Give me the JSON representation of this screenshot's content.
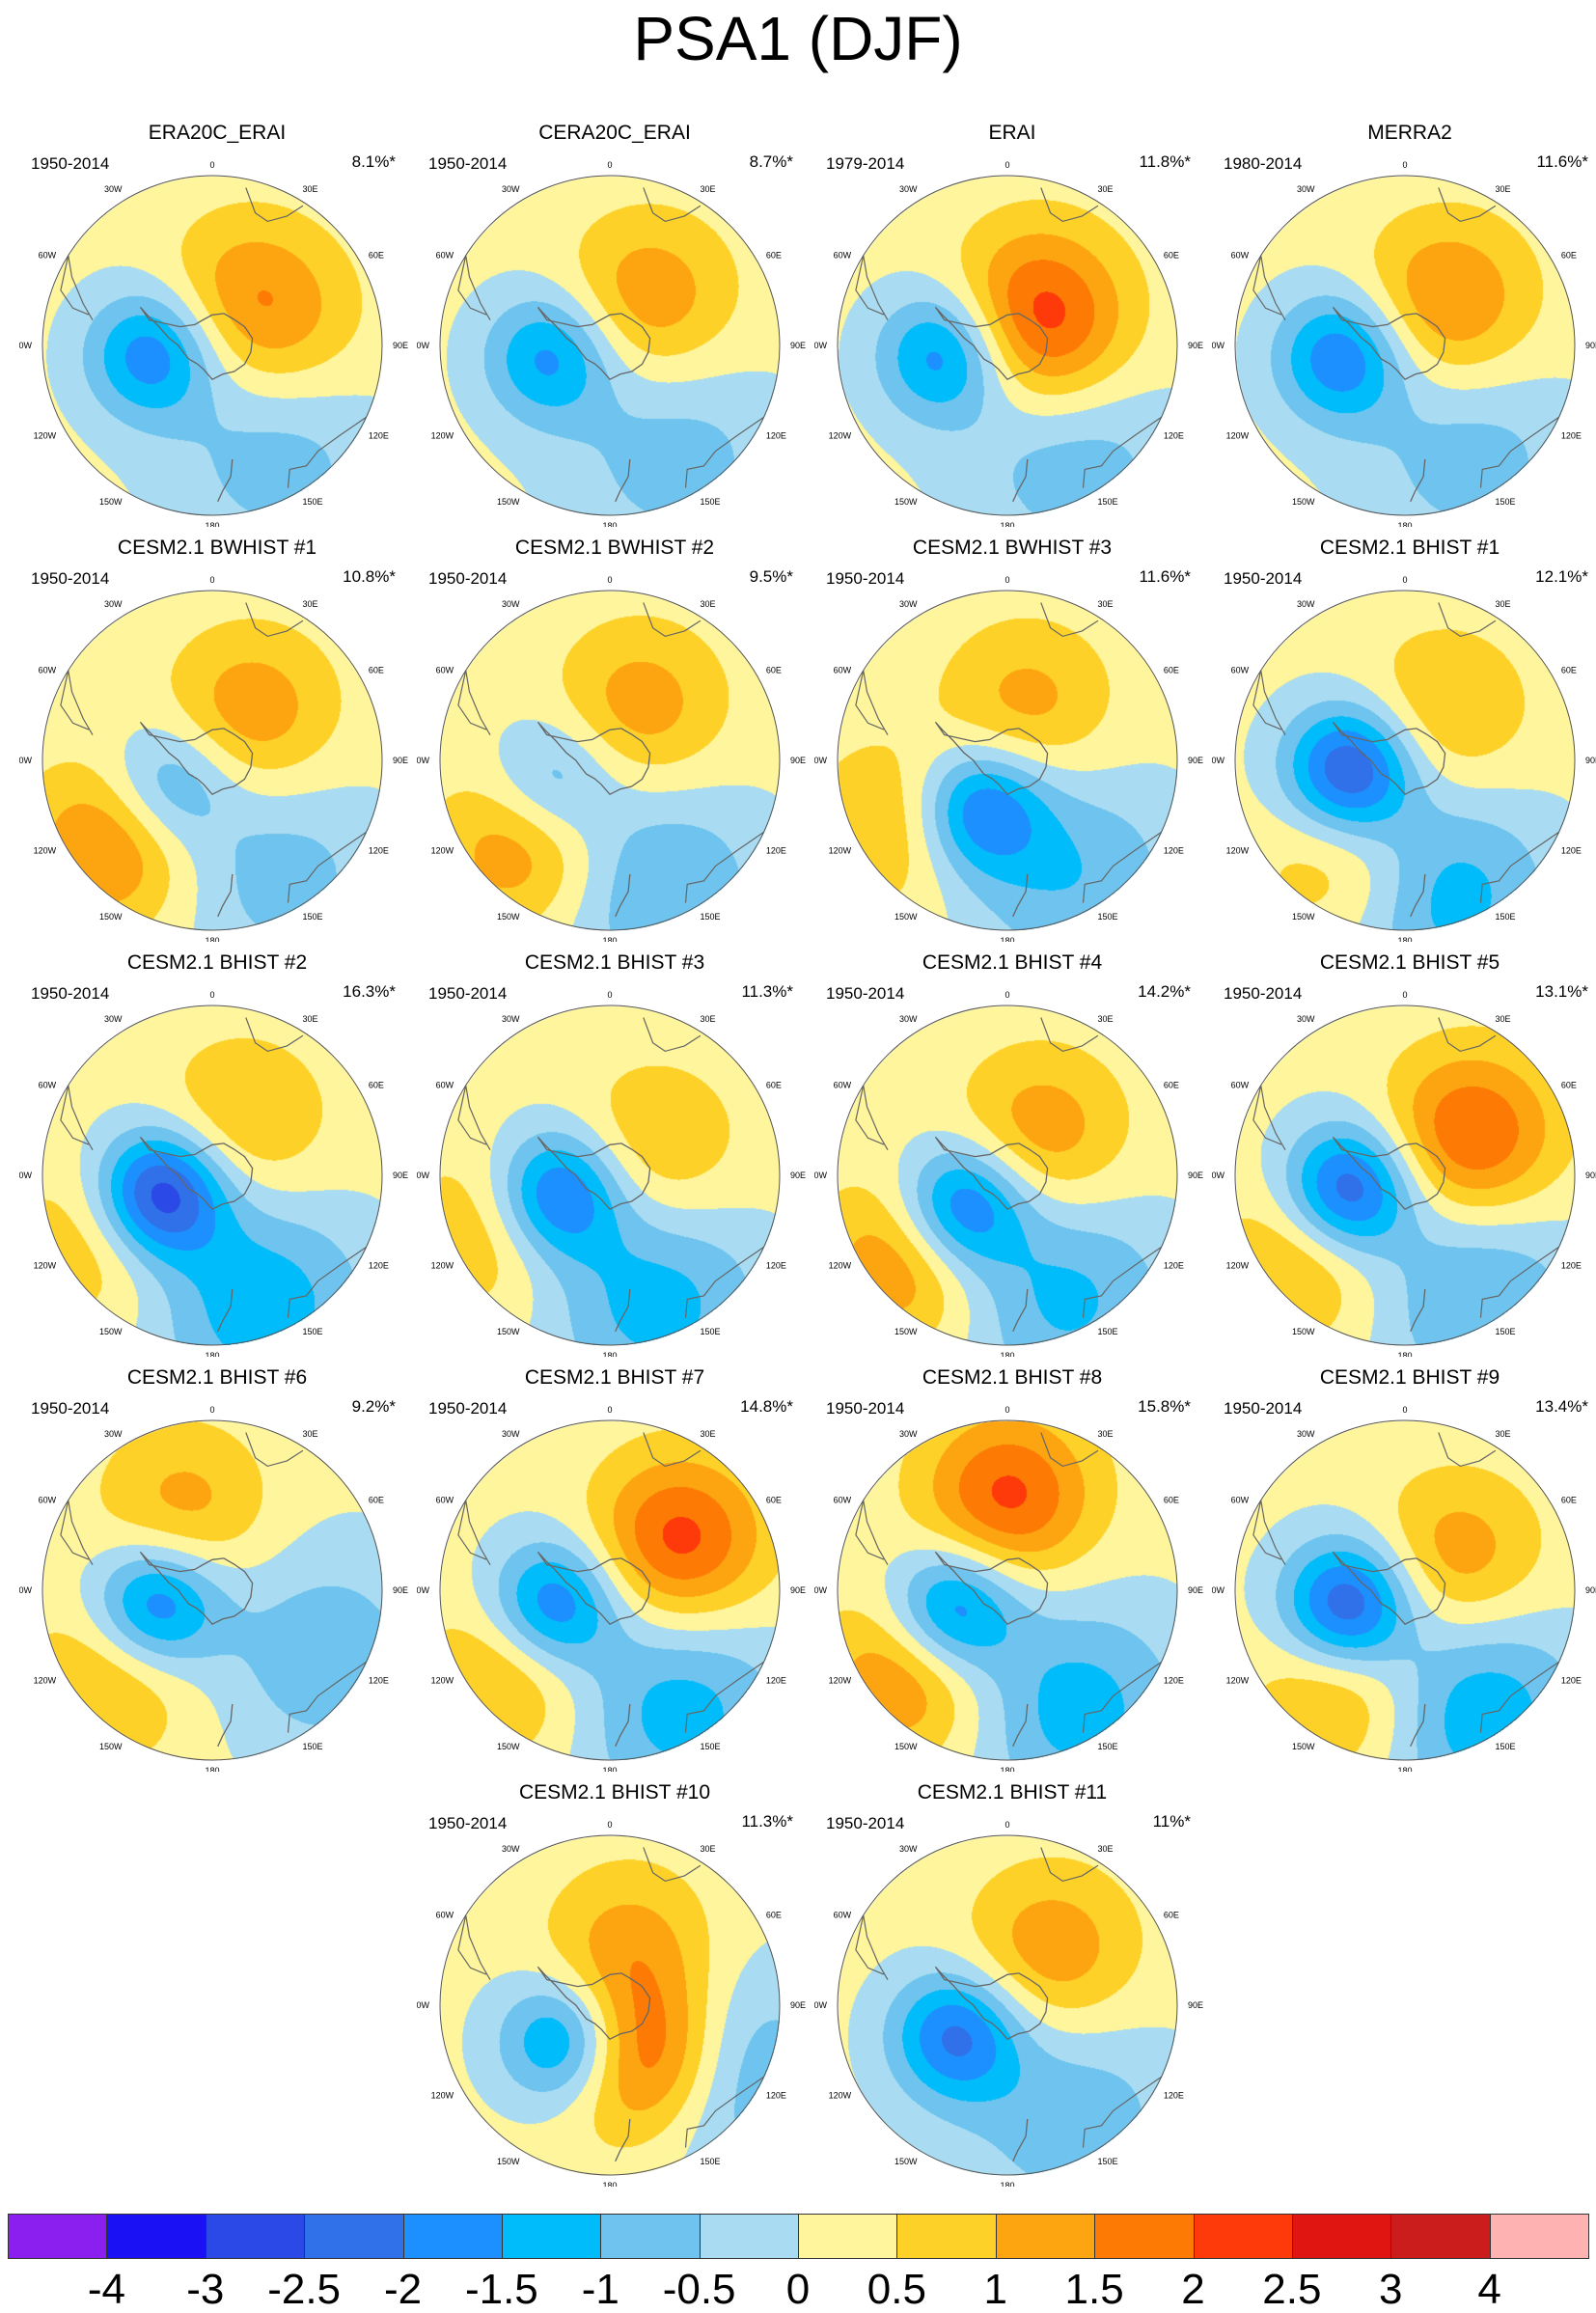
{
  "title": "PSA1 (DJF)",
  "longitude_labels": [
    "0",
    "30E",
    "60E",
    "90E",
    "120E",
    "150E",
    "180",
    "150W",
    "120W",
    "90W",
    "60W",
    "30W"
  ],
  "panels": [
    {
      "title": "ERA20C_ERAI",
      "period": "1950-2014",
      "variance": "8.1%*",
      "low": {
        "lon": -98,
        "r": 0.36,
        "a": -2.0
      },
      "highs": [
        {
          "lon": 35,
          "r": 0.35,
          "a": 1.1
        },
        {
          "lon": 80,
          "r": 0.45,
          "a": 0.6
        }
      ],
      "side": {
        "lon": 150,
        "r": 0.75,
        "a": -0.9
      }
    },
    {
      "title": "CERA20C_ERAI",
      "period": "1950-2014",
      "variance": "8.7%*",
      "low": {
        "lon": -100,
        "r": 0.36,
        "a": -1.8
      },
      "highs": [
        {
          "lon": 40,
          "r": 0.35,
          "a": 1.3
        }
      ],
      "side": {
        "lon": 150,
        "r": 0.75,
        "a": -0.9
      }
    },
    {
      "title": "ERAI",
      "period": "1979-2014",
      "variance": "11.8%*",
      "low": {
        "lon": -98,
        "r": 0.38,
        "a": -2.0
      },
      "highs": [
        {
          "lon": 35,
          "r": 0.3,
          "a": 1.4
        },
        {
          "lon": 90,
          "r": 0.25,
          "a": 1.0
        }
      ],
      "side": {
        "lon": 150,
        "r": 0.75,
        "a": -1.0
      }
    },
    {
      "title": "MERRA2",
      "period": "1980-2014",
      "variance": "11.6%*",
      "low": {
        "lon": -100,
        "r": 0.38,
        "a": -2.1
      },
      "highs": [
        {
          "lon": 45,
          "r": 0.35,
          "a": 1.5
        }
      ],
      "side": {
        "lon": 150,
        "r": 0.75,
        "a": -0.9
      }
    },
    {
      "title": "CESM2.1 BWHIST #1",
      "period": "1950-2014",
      "variance": "10.8%*",
      "low": {
        "lon": -120,
        "r": 0.3,
        "a": -1.5
      },
      "highs": [
        {
          "lon": 40,
          "r": 0.35,
          "a": 1.3
        },
        {
          "lon": -130,
          "r": 0.75,
          "a": 1.6
        }
      ],
      "side": {
        "lon": 150,
        "r": 0.75,
        "a": -0.9
      }
    },
    {
      "title": "CESM2.1 BWHIST #2",
      "period": "1950-2014",
      "variance": "9.5%*",
      "low": {
        "lon": -110,
        "r": 0.36,
        "a": -1.4
      },
      "highs": [
        {
          "lon": 30,
          "r": 0.35,
          "a": 1.2
        },
        {
          "lon": -135,
          "r": 0.7,
          "a": 1.5
        }
      ],
      "side": {
        "lon": 160,
        "r": 0.78,
        "a": -1.2
      }
    },
    {
      "title": "CESM2.1 BWHIST #3",
      "period": "1950-2014",
      "variance": "11.6%*",
      "low": {
        "lon": -150,
        "r": 0.33,
        "a": -2.2
      },
      "highs": [
        {
          "lon": 20,
          "r": 0.33,
          "a": 1.1
        },
        {
          "lon": -120,
          "r": 0.75,
          "a": 1.0
        }
      ],
      "side": {
        "lon": 150,
        "r": 0.78,
        "a": -1.1
      }
    },
    {
      "title": "CESM2.1 BHIST #1",
      "period": "1950-2014",
      "variance": "12.1%*",
      "low": {
        "lon": -100,
        "r": 0.33,
        "a": -2.8
      },
      "highs": [
        {
          "lon": 40,
          "r": 0.35,
          "a": 1.0
        },
        {
          "lon": -150,
          "r": 0.7,
          "a": 1.1
        }
      ],
      "side": {
        "lon": 165,
        "r": 0.8,
        "a": -1.5
      }
    },
    {
      "title": "CESM2.1 BHIST #2",
      "period": "1950-2014",
      "variance": "16.3%*",
      "low": {
        "lon": -110,
        "r": 0.33,
        "a": -3.2
      },
      "highs": [
        {
          "lon": 30,
          "r": 0.35,
          "a": 1.0
        },
        {
          "lon": -120,
          "r": 0.75,
          "a": 1.0
        }
      ],
      "side": {
        "lon": 160,
        "r": 0.8,
        "a": -1.5
      }
    },
    {
      "title": "CESM2.1 BHIST #3",
      "period": "1950-2014",
      "variance": "11.3%*",
      "low": {
        "lon": -110,
        "r": 0.33,
        "a": -2.5
      },
      "highs": [
        {
          "lon": 60,
          "r": 0.3,
          "a": 1.0
        },
        {
          "lon": -115,
          "r": 0.75,
          "a": 1.0
        }
      ],
      "side": {
        "lon": 160,
        "r": 0.78,
        "a": -1.4
      }
    },
    {
      "title": "CESM2.1 BHIST #4",
      "period": "1950-2014",
      "variance": "14.2%*",
      "low": {
        "lon": -125,
        "r": 0.33,
        "a": -2.6
      },
      "highs": [
        {
          "lon": 40,
          "r": 0.3,
          "a": 1.3
        },
        {
          "lon": -130,
          "r": 0.75,
          "a": 1.6
        }
      ],
      "side": {
        "lon": 155,
        "r": 0.78,
        "a": -1.3
      }
    },
    {
      "title": "CESM2.1 BHIST #5",
      "period": "1950-2014",
      "variance": "13.1%*",
      "low": {
        "lon": -105,
        "r": 0.35,
        "a": -2.8
      },
      "highs": [
        {
          "lon": 60,
          "r": 0.45,
          "a": 2.0
        },
        {
          "lon": -130,
          "r": 0.75,
          "a": 1.2
        }
      ],
      "side": {
        "lon": 150,
        "r": 0.8,
        "a": -1.2
      }
    },
    {
      "title": "CESM2.1 BHIST #6",
      "period": "1950-2014",
      "variance": "9.2%*",
      "low": {
        "lon": -105,
        "r": 0.35,
        "a": -2.4
      },
      "highs": [
        {
          "lon": -20,
          "r": 0.5,
          "a": 1.1
        },
        {
          "lon": -130,
          "r": 0.75,
          "a": 1.1
        }
      ],
      "side": {
        "lon": 120,
        "r": 0.75,
        "a": -1.0
      }
    },
    {
      "title": "CESM2.1 BHIST #7",
      "period": "1950-2014",
      "variance": "14.8%*",
      "low": {
        "lon": -105,
        "r": 0.35,
        "a": -2.3
      },
      "highs": [
        {
          "lon": 55,
          "r": 0.5,
          "a": 2.1
        },
        {
          "lon": -130,
          "r": 0.75,
          "a": 1.2
        }
      ],
      "side": {
        "lon": 150,
        "r": 0.8,
        "a": -1.4
      }
    },
    {
      "title": "CESM2.1 BHIST #8",
      "period": "1950-2014",
      "variance": "15.8%*",
      "low": {
        "lon": -110,
        "r": 0.35,
        "a": -2.4
      },
      "highs": [
        {
          "lon": 0,
          "r": 0.55,
          "a": 2.0
        },
        {
          "lon": -130,
          "r": 0.75,
          "a": 1.6
        }
      ],
      "side": {
        "lon": 150,
        "r": 0.8,
        "a": -1.4
      }
    },
    {
      "title": "CESM2.1 BHIST #9",
      "period": "1950-2014",
      "variance": "13.4%*",
      "low": {
        "lon": -105,
        "r": 0.35,
        "a": -2.8
      },
      "highs": [
        {
          "lon": 60,
          "r": 0.35,
          "a": 1.3
        },
        {
          "lon": -150,
          "r": 0.7,
          "a": 1.3
        }
      ],
      "side": {
        "lon": 150,
        "r": 0.8,
        "a": -1.6
      }
    },
    {
      "title": "CESM2.1 BHIST #10",
      "period": "1950-2014",
      "variance": "11.3%*",
      "low": {
        "lon": -130,
        "r": 0.33,
        "a": -2.4
      },
      "highs": [
        {
          "lon": 150,
          "r": 0.35,
          "a": 2.5
        },
        {
          "lon": 20,
          "r": 0.35,
          "a": 1.1
        }
      ],
      "side": {
        "lon": 120,
        "r": 0.78,
        "a": -1.3
      }
    },
    {
      "title": "CESM2.1 BHIST #11",
      "period": "1950-2014",
      "variance": "11%*",
      "low": {
        "lon": -120,
        "r": 0.35,
        "a": -2.2
      },
      "highs": [
        {
          "lon": 40,
          "r": 0.4,
          "a": 1.3
        }
      ],
      "side": {
        "lon": 150,
        "r": 0.75,
        "a": -1.0
      }
    }
  ],
  "colorbar": {
    "labels": [
      "-4",
      "-3",
      "-2.5",
      "-2",
      "-1.5",
      "-1",
      "-0.5",
      "0",
      "0.5",
      "1",
      "1.5",
      "2",
      "2.5",
      "3",
      "4"
    ],
    "colors": [
      "#8a1ff0",
      "#1a12f5",
      "#2b49e6",
      "#3070e8",
      "#1d90ff",
      "#00bcfa",
      "#6ec4ee",
      "#a9dcf2",
      "#fef59c",
      "#fdd128",
      "#fda511",
      "#fd7b04",
      "#ff3a0a",
      "#e01410",
      "#cc1d1d",
      "#ffb2b2"
    ]
  }
}
